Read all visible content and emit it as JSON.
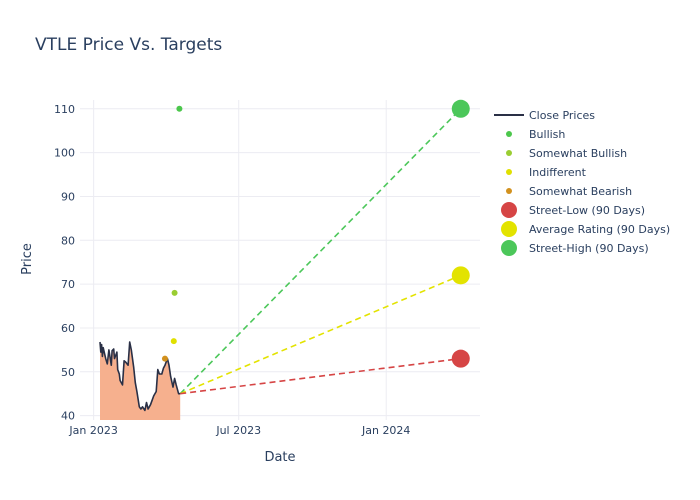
{
  "chart_data": {
    "type": "line",
    "title": "VTLE Price Vs. Targets",
    "xlabel": "Date",
    "ylabel": "Price",
    "xlim": [
      "2022-12-15",
      "2024-04-27"
    ],
    "ylim": [
      39,
      112
    ],
    "x_ticks": [
      {
        "date": "2023-01-01",
        "label": "Jan 2023"
      },
      {
        "date": "2023-07-01",
        "label": "Jul 2023"
      },
      {
        "date": "2024-01-01",
        "label": "Jan 2024"
      }
    ],
    "y_ticks": [
      40,
      50,
      60,
      70,
      80,
      90,
      100,
      110
    ],
    "grid": true,
    "legend_position": "right",
    "colors": {
      "close": "#2a3046",
      "fill": "#f6b08e",
      "bullish": "#4cc74c",
      "somewhat_bullish": "#9acd32",
      "indifferent": "#e0e000",
      "somewhat_bearish": "#d2911e",
      "street_low": "#d64545",
      "average": "#e3e300",
      "street_high": "#4cc75a"
    },
    "legend": [
      {
        "name": "Close Prices",
        "kind": "line",
        "color": "#2a3046"
      },
      {
        "name": "Bullish",
        "kind": "dot-small",
        "color": "#4cc74c"
      },
      {
        "name": "Somewhat Bullish",
        "kind": "dot-small",
        "color": "#9acd32"
      },
      {
        "name": "Indifferent",
        "kind": "dot-small",
        "color": "#e0e000"
      },
      {
        "name": "Somewhat Bearish",
        "kind": "dot-small",
        "color": "#d2911e"
      },
      {
        "name": "Street-Low (90 Days)",
        "kind": "dot-big",
        "color": "#d64545"
      },
      {
        "name": "Average Rating (90 Days)",
        "kind": "dot-big",
        "color": "#e3e300"
      },
      {
        "name": "Street-High (90 Days)",
        "kind": "dot-big",
        "color": "#4cc75a"
      }
    ],
    "close_prices": [
      [
        "2023-01-09",
        56.8
      ],
      [
        "2023-01-10",
        54.5
      ],
      [
        "2023-01-11",
        56.2
      ],
      [
        "2023-01-12",
        53.5
      ],
      [
        "2023-01-13",
        55.5
      ],
      [
        "2023-01-16",
        53.0
      ],
      [
        "2023-01-18",
        51.8
      ],
      [
        "2023-01-20",
        55.0
      ],
      [
        "2023-01-23",
        51.5
      ],
      [
        "2023-01-24",
        54.8
      ],
      [
        "2023-01-26",
        55.2
      ],
      [
        "2023-01-27",
        53.0
      ],
      [
        "2023-01-30",
        54.5
      ],
      [
        "2023-01-31",
        50.5
      ],
      [
        "2023-02-02",
        49.5
      ],
      [
        "2023-02-03",
        48.0
      ],
      [
        "2023-02-06",
        47.0
      ],
      [
        "2023-02-08",
        52.5
      ],
      [
        "2023-02-10",
        52.2
      ],
      [
        "2023-02-13",
        51.5
      ],
      [
        "2023-02-15",
        56.8
      ],
      [
        "2023-02-17",
        55.0
      ],
      [
        "2023-02-20",
        51.0
      ],
      [
        "2023-02-22",
        47.5
      ],
      [
        "2023-02-24",
        45.5
      ],
      [
        "2023-02-27",
        42.0
      ],
      [
        "2023-03-01",
        41.5
      ],
      [
        "2023-03-03",
        42.0
      ],
      [
        "2023-03-06",
        41.2
      ],
      [
        "2023-03-08",
        43.0
      ],
      [
        "2023-03-10",
        41.5
      ],
      [
        "2023-03-13",
        42.5
      ],
      [
        "2023-03-15",
        43.5
      ],
      [
        "2023-03-17",
        44.5
      ],
      [
        "2023-03-20",
        45.5
      ],
      [
        "2023-03-22",
        50.5
      ],
      [
        "2023-03-24",
        49.5
      ],
      [
        "2023-03-27",
        49.5
      ],
      [
        "2023-03-29",
        50.8
      ],
      [
        "2023-03-31",
        51.5
      ],
      [
        "2023-04-03",
        53.0
      ],
      [
        "2023-04-05",
        51.5
      ],
      [
        "2023-04-07",
        49.0
      ],
      [
        "2023-04-10",
        46.5
      ],
      [
        "2023-04-12",
        48.5
      ],
      [
        "2023-04-14",
        47.0
      ],
      [
        "2023-04-17",
        45.0
      ],
      [
        "2023-04-19",
        45.0
      ]
    ],
    "analyst_ratings": [
      {
        "category": "Bullish",
        "date": "2023-04-18",
        "value": 110,
        "color": "#4cc74c"
      },
      {
        "category": "Somewhat Bullish",
        "date": "2023-04-12",
        "value": 68,
        "color": "#9acd32"
      },
      {
        "category": "Indifferent",
        "date": "2023-04-11",
        "value": 57,
        "color": "#e0e000"
      },
      {
        "category": "Somewhat Bearish",
        "date": "2023-03-31",
        "value": 53,
        "color": "#d2911e"
      }
    ],
    "targets": {
      "start_date": "2023-04-19",
      "start_value": 45,
      "target_date": "2024-04-03",
      "street_low": 53,
      "average": 72,
      "street_high": 110
    }
  }
}
